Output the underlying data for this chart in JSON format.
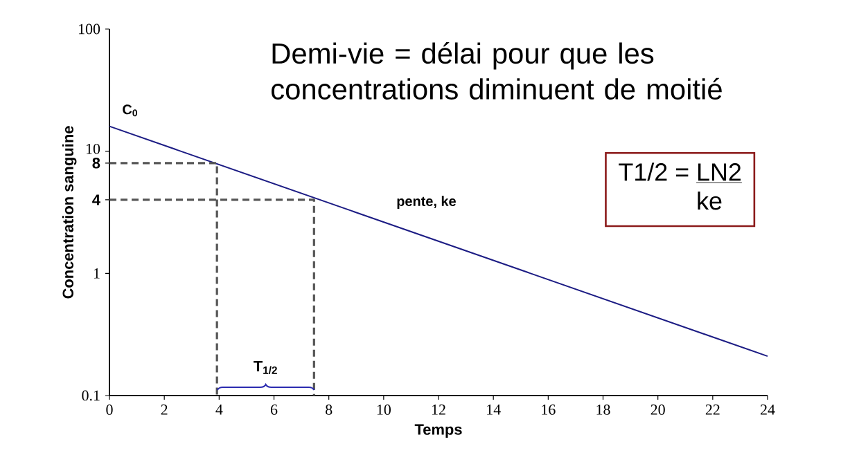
{
  "chart_data": {
    "type": "line",
    "title": "Demi-vie = délai pour que les concentrations diminuent de moitié",
    "xlabel": "Temps",
    "ylabel": "Concentration sanguine",
    "log": "y",
    "xlim": [
      0,
      24
    ],
    "ylim": [
      0.1,
      100
    ],
    "xticks": [
      0,
      2,
      4,
      6,
      8,
      10,
      12,
      14,
      16,
      18,
      20,
      22,
      24
    ],
    "yticks": [
      0.1,
      1,
      4,
      8,
      10,
      100
    ],
    "series": [
      {
        "color": "#1c1c84",
        "x": [
          0,
          24
        ],
        "values": [
          16,
          0.21
        ]
      },
      {
        "color": "#555555",
        "line_style": "dashed",
        "x": [
          0,
          3.92,
          3.92
        ],
        "values": [
          8,
          8,
          0.1
        ]
      },
      {
        "color": "#555555",
        "line_style": "dashed",
        "x": [
          0,
          7.46,
          7.46
        ],
        "values": [
          4,
          4,
          0.1
        ]
      }
    ],
    "annotations": [
      "T$_{1/2}$",
      {
        "text": "C$_{0}$",
        "x": 0,
        "y": 16
      },
      {
        "text": "pente, ke",
        "x": 10,
        "y": 2.8
      },
      "T1/2 =",
      "LN2",
      "ke"
    ]
  }
}
